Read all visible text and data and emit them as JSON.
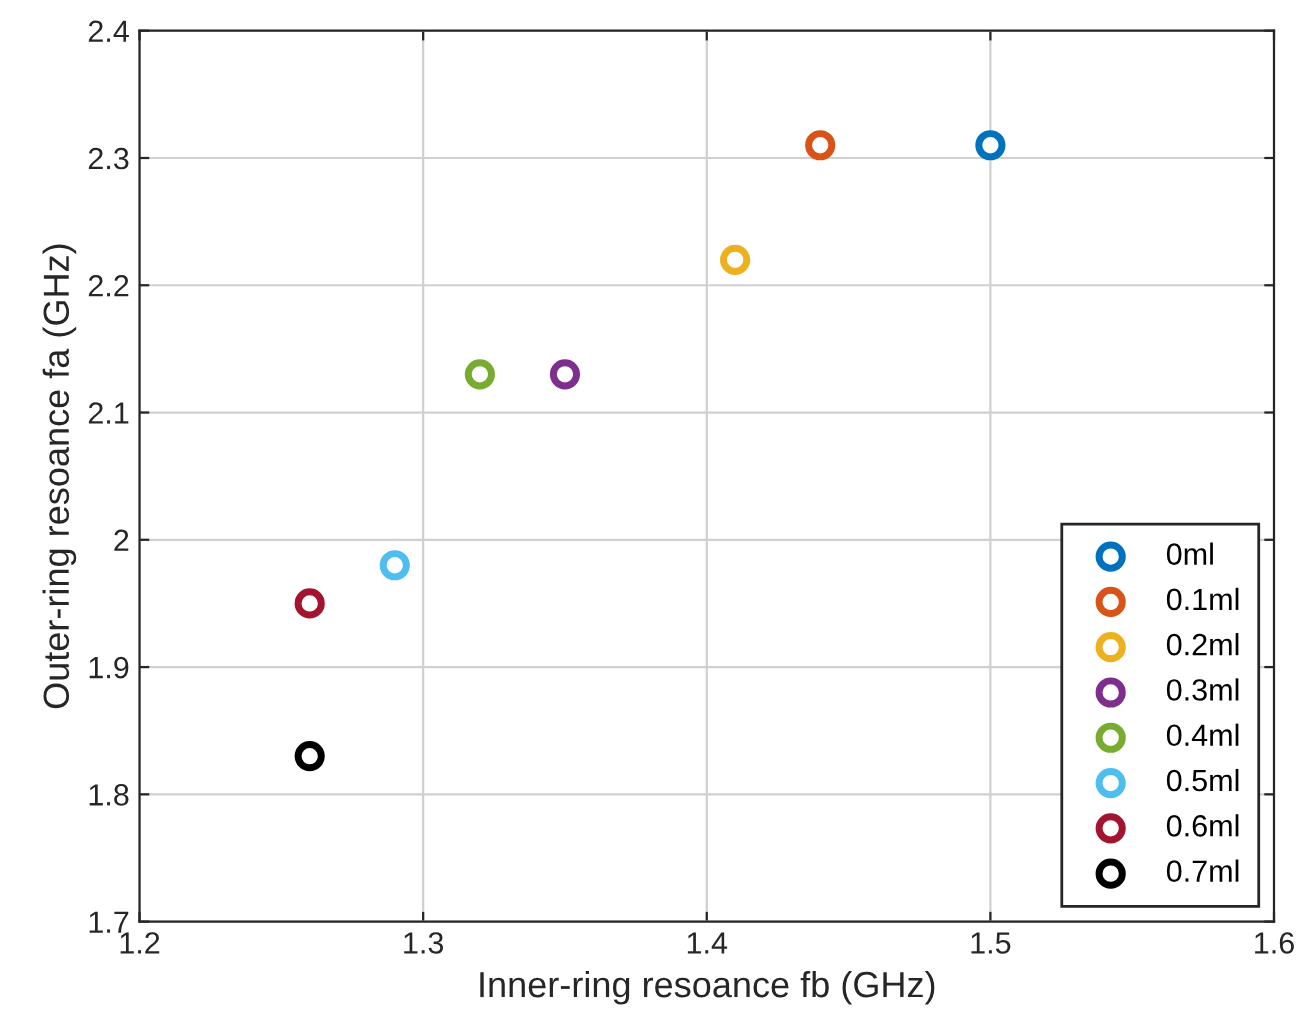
{
  "chart_data": {
    "type": "scatter",
    "xlabel": "Inner-ring resoance fb (GHz)",
    "ylabel": "Outer-ring resoance fa (GHz)",
    "series": [
      {
        "name": "0ml",
        "color": "#0072bd",
        "x": [
          1.5
        ],
        "values": [
          2.31
        ]
      },
      {
        "name": "0.1ml",
        "color": "#d95319",
        "x": [
          1.44
        ],
        "values": [
          2.31
        ]
      },
      {
        "name": "0.2ml",
        "color": "#edb120",
        "x": [
          1.41
        ],
        "values": [
          2.22
        ]
      },
      {
        "name": "0.3ml",
        "color": "#7e2f8e",
        "x": [
          1.35
        ],
        "values": [
          2.13
        ]
      },
      {
        "name": "0.4ml",
        "color": "#77ac30",
        "x": [
          1.32
        ],
        "values": [
          2.13
        ]
      },
      {
        "name": "0.5ml",
        "color": "#4dbeee",
        "x": [
          1.29
        ],
        "values": [
          1.98
        ]
      },
      {
        "name": "0.6ml",
        "color": "#a2142f",
        "x": [
          1.26
        ],
        "values": [
          1.95
        ]
      },
      {
        "name": "0.7ml",
        "color": "#000000",
        "x": [
          1.26
        ],
        "values": [
          1.83
        ]
      }
    ],
    "xlim": [
      1.2,
      1.6
    ],
    "xticks": [
      1.2,
      1.3,
      1.4,
      1.5,
      1.6
    ],
    "ylim": [
      1.7,
      2.4
    ],
    "yticks": [
      1.7,
      1.8,
      1.9,
      2,
      2.1,
      2.2,
      2.3,
      2.4
    ],
    "grid": true,
    "legend": "bottom right",
    "marker": "circle"
  }
}
